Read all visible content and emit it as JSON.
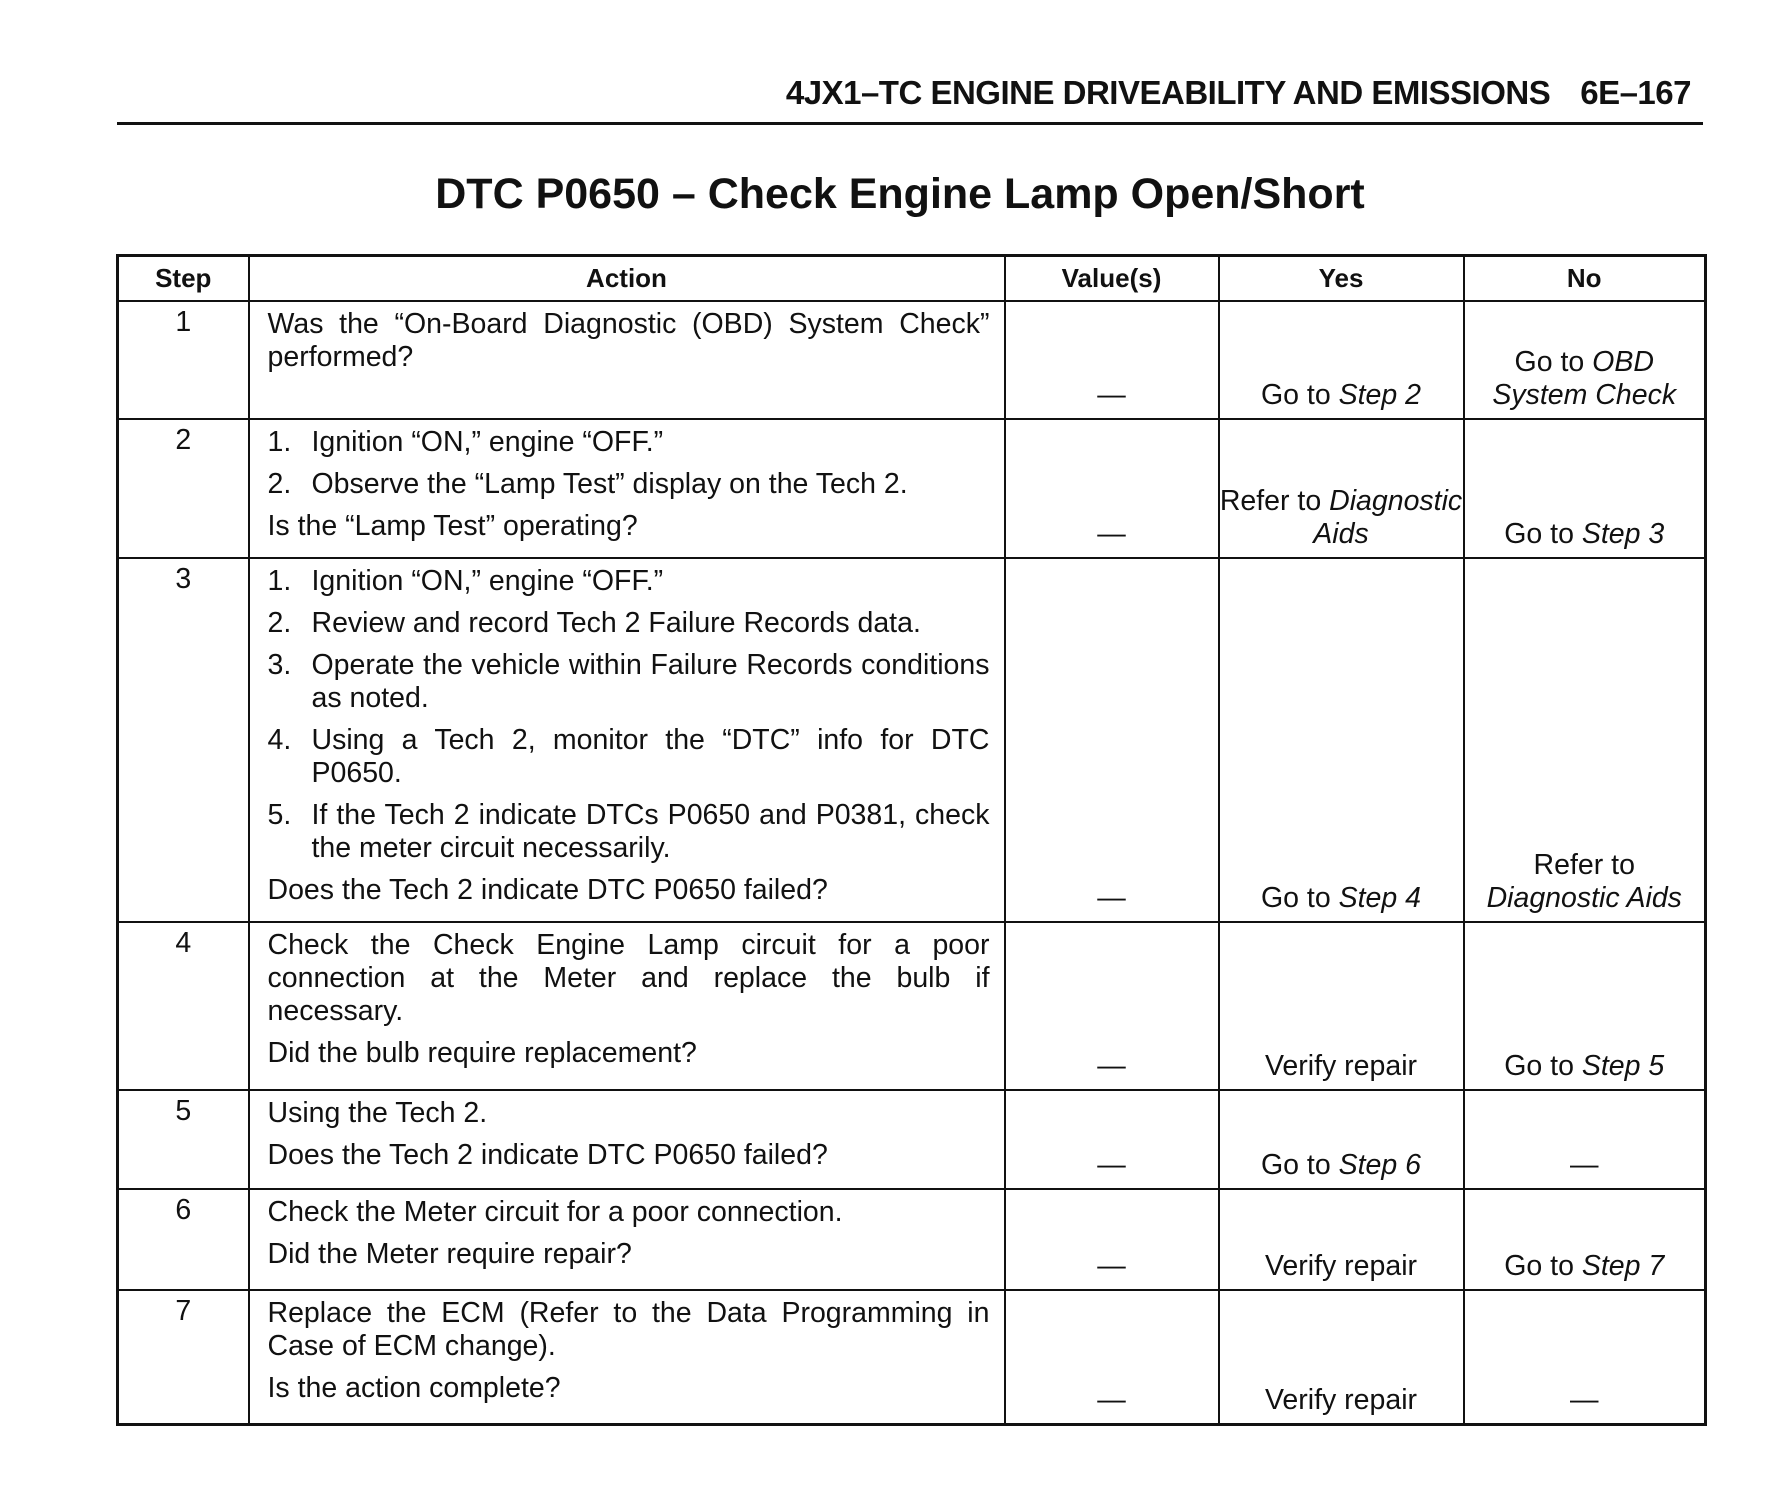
{
  "header": {
    "section": "4JX1–TC ENGINE DRIVEABILITY AND EMISSIONS",
    "page": "6E–167"
  },
  "title": "DTC P0650 – Check Engine Lamp Open/Short",
  "columns": [
    "Step",
    "Action",
    "Value(s)",
    "Yes",
    "No"
  ],
  "rows": [
    {
      "step": "1",
      "intro": "",
      "items": [],
      "question": "Was the “On-Board Diagnostic (OBD) System Check” performed?",
      "value": "—",
      "yes_pre": "Go to ",
      "yes_em": "Step 2",
      "no_pre": "Go to ",
      "no_em": "OBD System Check"
    },
    {
      "step": "2",
      "intro": "",
      "items": [
        "Ignition “ON,” engine “OFF.”",
        "Observe the “Lamp Test” display on the Tech 2."
      ],
      "question": "Is the “Lamp Test” operating?",
      "value": "—",
      "yes_pre": "Refer to ",
      "yes_em": "Diagnostic Aids",
      "no_pre": "Go to ",
      "no_em": "Step 3"
    },
    {
      "step": "3",
      "intro": "",
      "items": [
        "Ignition “ON,” engine “OFF.”",
        "Review and record Tech 2 Failure Records data.",
        "Operate the vehicle within Failure Records conditions as noted.",
        "Using a Tech 2, monitor the “DTC” info for DTC P0650.",
        "If the Tech 2 indicate DTCs P0650 and P0381, check the meter circuit necessarily."
      ],
      "question": "Does the Tech 2 indicate DTC P0650 failed?",
      "value": "—",
      "yes_pre": "Go to ",
      "yes_em": "Step 4",
      "no_pre": "Refer to ",
      "no_em": "Diagnostic Aids"
    },
    {
      "step": "4",
      "intro": "Check the Check Engine Lamp circuit for a poor connection at the Meter and replace the bulb if necessary.",
      "items": [],
      "question": "Did the bulb require replacement?",
      "value": "—",
      "yes_pre": "Verify repair",
      "yes_em": "",
      "no_pre": "Go to ",
      "no_em": "Step 5"
    },
    {
      "step": "5",
      "intro": "Using the Tech 2.",
      "items": [],
      "question": "Does the Tech 2 indicate DTC P0650 failed?",
      "value": "—",
      "yes_pre": "Go to ",
      "yes_em": "Step 6",
      "no_pre": "—",
      "no_em": ""
    },
    {
      "step": "6",
      "intro": "Check the Meter circuit for a poor connection.",
      "items": [],
      "question": "Did the Meter require repair?",
      "value": "—",
      "yes_pre": "Verify repair",
      "yes_em": "",
      "no_pre": "Go to ",
      "no_em": "Step 7"
    },
    {
      "step": "7",
      "intro": "Replace the ECM (Refer to the Data Programming in Case of ECM change).",
      "items": [],
      "question": "Is the action complete?",
      "value": "—",
      "yes_pre": "Verify repair",
      "yes_em": "",
      "no_pre": "—",
      "no_em": ""
    }
  ]
}
